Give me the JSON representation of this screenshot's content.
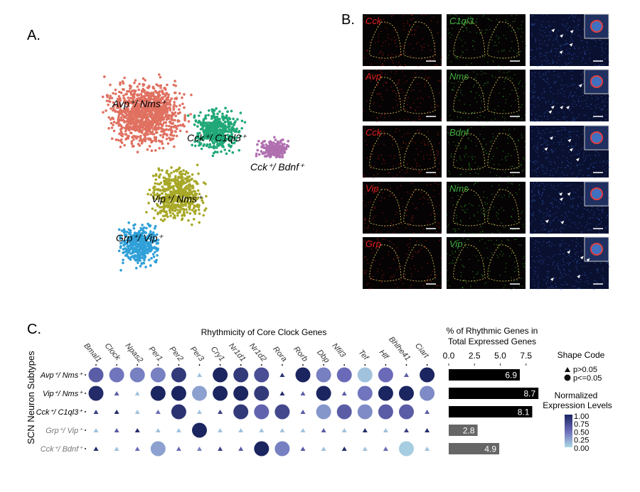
{
  "panels": {
    "a_label": "A.",
    "b_label": "B.",
    "c_label": "C."
  },
  "umap": {
    "clusters": [
      {
        "name": "Avp⁺/ Nms⁺",
        "color": "#e07060"
      },
      {
        "name": "Cck⁺/ C1ql3⁺",
        "color": "#20a878"
      },
      {
        "name": "Cck⁺/ Bdnf⁺",
        "color": "#b070b0"
      },
      {
        "name": "Vip⁺/ Nms⁺",
        "color": "#a8a828"
      },
      {
        "name": "Grp⁺/ Vip⁺",
        "color": "#30a0d8"
      }
    ]
  },
  "micrographs": {
    "rows": [
      {
        "red": "Cck",
        "green": "C1ql3"
      },
      {
        "red": "Avp",
        "green": "Nms"
      },
      {
        "red": "Cck",
        "green": "Bdnf"
      },
      {
        "red": "Vip",
        "green": "Nms"
      },
      {
        "red": "Grp",
        "green": "Vip"
      }
    ],
    "red_label_color": "#e02020",
    "green_label_color": "#40b040"
  },
  "chart_data": [
    {
      "type": "scatter",
      "subtype": "dot-plot",
      "title": "Rhythmicity of Core Clock Genes",
      "ylabel": "SCN Neuron Subtypes",
      "genes": [
        "Bmal1",
        "Clock",
        "Npas2",
        "Per1",
        "Per2",
        "Per3",
        "Cry1",
        "Nr1d1",
        "Nr1d2",
        "Rora",
        "Rorb",
        "Dbp",
        "Nfil3",
        "Tef",
        "Hlf",
        "Bhlhe41",
        "Ciart"
      ],
      "subtypes": [
        "Avp⁺/ Nms⁺",
        "Vip⁺/ Nms⁺",
        "Cck⁺/ C1ql3⁺",
        "Grp⁺/ Vip⁺",
        "Cck⁺/ Bdnf⁺"
      ],
      "subtype_label_colors": [
        "#000000",
        "#000000",
        "#000000",
        "#777777",
        "#777777"
      ],
      "significant": [
        [
          1,
          1,
          1,
          1,
          1,
          0,
          1,
          1,
          1,
          0,
          1,
          1,
          1,
          1,
          1,
          0,
          1
        ],
        [
          1,
          0,
          0,
          1,
          1,
          1,
          1,
          1,
          1,
          0,
          0,
          1,
          0,
          1,
          1,
          1,
          1
        ],
        [
          0,
          0,
          0,
          0,
          1,
          0,
          0,
          1,
          1,
          1,
          0,
          1,
          1,
          1,
          1,
          1,
          0
        ],
        [
          0,
          0,
          0,
          0,
          0,
          1,
          0,
          0,
          0,
          0,
          0,
          0,
          0,
          0,
          0,
          0,
          0
        ],
        [
          0,
          0,
          0,
          1,
          0,
          0,
          0,
          0,
          1,
          1,
          0,
          0,
          0,
          0,
          0,
          1,
          0
        ]
      ],
      "expression": [
        [
          0.6,
          0.45,
          0.4,
          0.4,
          0.85,
          0.1,
          1.0,
          0.85,
          0.7,
          0.9,
          1.0,
          0.4,
          0.5,
          0.1,
          0.5,
          0.6,
          1.0
        ],
        [
          0.95,
          0.6,
          0.1,
          1.0,
          1.0,
          0.25,
          1.0,
          1.0,
          0.85,
          0.95,
          0.6,
          1.0,
          0.6,
          0.45,
          1.0,
          1.0,
          0.35
        ],
        [
          0.8,
          0.95,
          0.1,
          0.5,
          0.9,
          0.1,
          0.8,
          0.85,
          0.55,
          0.75,
          0.6,
          0.3,
          0.6,
          0.35,
          0.6,
          0.6,
          0.6
        ],
        [
          0.1,
          0.6,
          0.95,
          0.1,
          0.1,
          1.0,
          0.1,
          0.1,
          0.1,
          0.1,
          0.1,
          0.6,
          0.1,
          0.95,
          0.1,
          0.8,
          0.95
        ],
        [
          0.95,
          0.1,
          0.5,
          0.25,
          0.5,
          0.4,
          0.8,
          0.6,
          1.0,
          0.4,
          0.6,
          0.1,
          0.95,
          0.1,
          0.5,
          0.05,
          0.1
        ]
      ],
      "shape_legend": {
        "title": "Shape Code",
        "triangle": "p>0.05",
        "circle": "p<=0.05"
      },
      "color_legend": {
        "title_line1": "Normalized",
        "title_line2": "Expression Levels",
        "ticks": [
          "1.00",
          "0.75",
          "0.50",
          "0.25",
          "0.00"
        ],
        "colors": [
          "#add8e6",
          "#6a6ab8",
          "#1b2560"
        ]
      }
    },
    {
      "type": "bar",
      "orientation": "horizontal",
      "title_line1": "% of Rhythmic Genes in",
      "title_line2": "Total Expressed Genes",
      "categories": [
        "Avp⁺/ Nms⁺",
        "Vip⁺/ Nms⁺",
        "Cck⁺/ C1ql3⁺",
        "Grp⁺/ Vip⁺",
        "Cck⁺/ Bdnf⁺"
      ],
      "values": [
        6.9,
        8.7,
        8.1,
        2.8,
        4.9
      ],
      "value_labels": [
        "6.9",
        "8.7",
        "8.1",
        "2.8",
        "4.9"
      ],
      "bar_colors": [
        "#000000",
        "#000000",
        "#000000",
        "#666666",
        "#666666"
      ],
      "xticks": [
        "0.0",
        "2.5",
        "5.0",
        "7.5"
      ],
      "xlim": [
        0,
        9
      ]
    }
  ]
}
